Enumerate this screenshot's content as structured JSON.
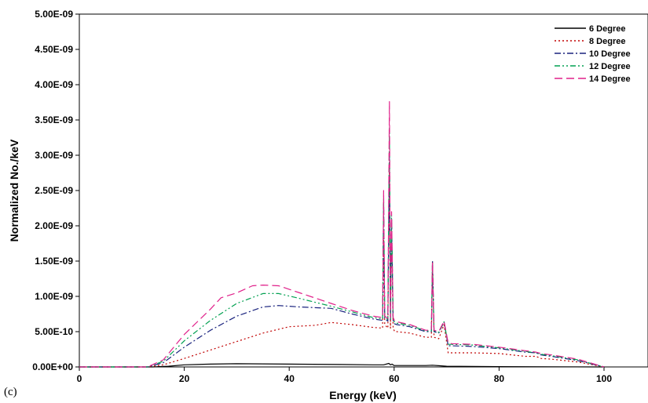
{
  "panel_label": "(c)",
  "chart_data": {
    "type": "line",
    "title": "",
    "xlabel": "Energy (keV)",
    "ylabel": "Normalized No./keV",
    "xlim": [
      0,
      110
    ],
    "ylim": [
      0,
      5e-09
    ],
    "x_ticks": [
      "0",
      "20",
      "40",
      "60",
      "80",
      "100"
    ],
    "y_ticks": [
      "0.00E+00",
      "5.00E-10",
      "1.00E-09",
      "1.50E-09",
      "2.00E-09",
      "2.50E-09",
      "3.00E-09",
      "3.50E-09",
      "4.00E-09",
      "4.50E-09",
      "5.00E-09"
    ],
    "grid": false,
    "legend_position": "top-right",
    "series": [
      {
        "name": "6 Degree",
        "color": "#000000",
        "dash": "",
        "x": [
          0,
          10,
          14,
          17,
          20,
          25,
          30,
          40,
          50,
          56,
          58,
          59,
          59.3,
          59.6,
          60,
          62,
          66,
          67.3,
          69,
          70,
          80,
          90,
          100
        ],
        "y": [
          0,
          0,
          0,
          1e-11,
          3e-11,
          4e-11,
          4.5e-11,
          4e-11,
          3.5e-11,
          3e-11,
          3e-11,
          5e-11,
          3e-11,
          4e-11,
          2e-11,
          2e-11,
          2e-11,
          2.5e-11,
          1.5e-11,
          1e-11,
          5e-12,
          2e-12,
          0
        ]
      },
      {
        "name": "8 Degree",
        "color": "#c00000",
        "dash": "2,3",
        "x": [
          0,
          10,
          13,
          16,
          20,
          25,
          30,
          35,
          40,
          45,
          48,
          52,
          56,
          57.8,
          58.0,
          58.2,
          58.8,
          59.1,
          59.3,
          59.5,
          59.8,
          60.1,
          60.5,
          63,
          66,
          67.1,
          67.3,
          67.6,
          68.5,
          69.5,
          70.3,
          71,
          75,
          80,
          85,
          87,
          88,
          90,
          95,
          100
        ],
        "y": [
          0,
          0,
          0,
          3e-11,
          1.2e-10,
          2.4e-10,
          3.6e-10,
          4.8e-10,
          5.7e-10,
          5.9e-10,
          6.3e-10,
          6e-10,
          5.6e-10,
          5.5e-10,
          1.9e-09,
          6e-10,
          5.5e-10,
          2.9e-09,
          5.5e-10,
          2e-09,
          5.5e-10,
          5e-10,
          5e-10,
          4.8e-10,
          4.2e-10,
          4.2e-10,
          1.5e-09,
          4.2e-10,
          4e-10,
          6e-10,
          2e-10,
          2e-10,
          2e-10,
          1.9e-10,
          1.5e-10,
          1.5e-10,
          1.2e-10,
          1.1e-10,
          7e-11,
          0
        ]
      },
      {
        "name": "10 Degree",
        "color": "#1a237e",
        "dash": "8,3,2,3",
        "x": [
          0,
          10,
          13,
          16,
          20,
          25,
          30,
          35,
          38,
          42,
          48,
          52,
          56,
          57.8,
          58.0,
          58.2,
          58.8,
          59.1,
          59.3,
          59.5,
          59.8,
          60.1,
          60.5,
          63,
          66,
          67.1,
          67.3,
          67.6,
          68.5,
          69.5,
          70.3,
          71,
          75,
          80,
          85,
          87,
          88,
          90,
          95,
          100
        ],
        "y": [
          0,
          0,
          0,
          6e-11,
          2.8e-10,
          5.2e-10,
          7.2e-10,
          8.5e-10,
          8.7e-10,
          8.5e-10,
          8.3e-10,
          7.5e-10,
          6.8e-10,
          6.6e-10,
          2.3e-09,
          6.8e-10,
          6.5e-10,
          3e-09,
          6.6e-10,
          2.1e-09,
          6.6e-10,
          6.1e-10,
          6e-10,
          5.7e-10,
          5e-10,
          5e-10,
          1.5e-09,
          5e-10,
          4.8e-10,
          6.4e-10,
          3e-10,
          3e-10,
          2.9e-10,
          2.6e-10,
          2.1e-10,
          2e-10,
          1.7e-10,
          1.5e-10,
          9e-11,
          0
        ]
      },
      {
        "name": "12 Degree",
        "color": "#00a050",
        "dash": "7,3,2,3,2,3",
        "x": [
          0,
          10,
          13,
          16,
          20,
          25,
          30,
          35,
          38,
          42,
          48,
          52,
          56,
          57.8,
          58.0,
          58.2,
          58.8,
          59.1,
          59.3,
          59.5,
          59.8,
          60.1,
          60.5,
          63,
          66,
          67.1,
          67.3,
          67.6,
          68.5,
          69.5,
          70.3,
          71,
          75,
          80,
          85,
          87,
          88,
          90,
          95,
          100
        ],
        "y": [
          0,
          0,
          0,
          8e-11,
          3.7e-10,
          6.6e-10,
          9e-10,
          1.04e-09,
          1.04e-09,
          9.7e-10,
          8.6e-10,
          7.8e-10,
          7e-10,
          6.8e-10,
          2.4e-09,
          7e-10,
          6.7e-10,
          3.4e-09,
          6.8e-10,
          2.15e-09,
          6.8e-10,
          6.3e-10,
          6.2e-10,
          5.9e-10,
          5.1e-10,
          5.1e-10,
          1.45e-09,
          5.1e-10,
          4.9e-10,
          6.4e-10,
          3.2e-10,
          3.2e-10,
          3.1e-10,
          2.7e-10,
          2.2e-10,
          2e-10,
          1.8e-10,
          1.6e-10,
          1e-10,
          0
        ]
      },
      {
        "name": "14 Degree",
        "color": "#e0208a",
        "dash": "10,5",
        "x": [
          0,
          10,
          13,
          16,
          20,
          25,
          27,
          30,
          33,
          35,
          38,
          42,
          48,
          52,
          56,
          57.8,
          58.0,
          58.2,
          58.8,
          59.1,
          59.3,
          59.5,
          59.8,
          60.1,
          60.5,
          63,
          66,
          67.1,
          67.3,
          67.6,
          68.5,
          69.5,
          70.3,
          71,
          75,
          80,
          85,
          87,
          88,
          90,
          95,
          100
        ],
        "y": [
          0,
          0,
          0,
          1e-10,
          4.6e-10,
          8.2e-10,
          9.8e-10,
          1.05e-09,
          1.15e-09,
          1.16e-09,
          1.15e-09,
          1.05e-09,
          9e-10,
          8e-10,
          7.2e-10,
          7e-10,
          2.5e-09,
          7.2e-10,
          6.9e-10,
          3.76e-09,
          7e-10,
          2.2e-09,
          7e-10,
          6.5e-10,
          6.4e-10,
          6e-10,
          5.2e-10,
          5.2e-10,
          1.48e-09,
          5.2e-10,
          5e-10,
          6.5e-10,
          3.4e-10,
          3.3e-10,
          3.2e-10,
          2.8e-10,
          2.3e-10,
          2.1e-10,
          1.9e-10,
          1.7e-10,
          1.1e-10,
          0
        ]
      }
    ]
  }
}
